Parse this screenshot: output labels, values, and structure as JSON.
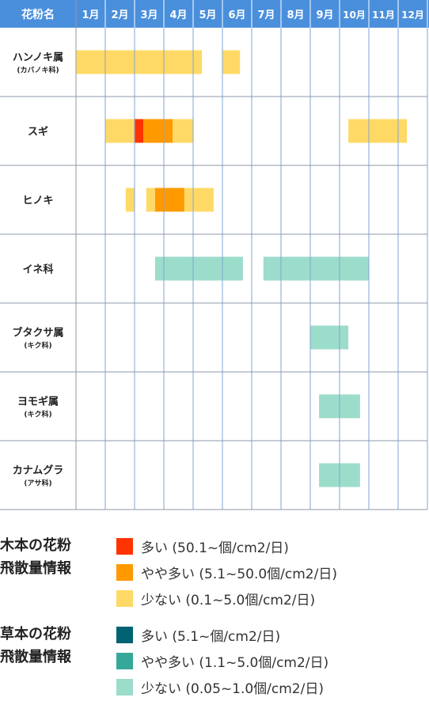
{
  "header": {
    "label": "花粉名",
    "months": [
      "1月",
      "2月",
      "3月",
      "4月",
      "5月",
      "6月",
      "7月",
      "8月",
      "9月",
      "10月",
      "11月",
      "12月"
    ]
  },
  "colors": {
    "header_bg": "#4A8FDC",
    "grid": "#8E9AAA",
    "wood_high": "#FF3300",
    "wood_mid": "#FF9900",
    "wood_low": "#FFD966",
    "grass_high": "#006272",
    "grass_mid": "#36A89A",
    "grass_low": "#9CDCCB"
  },
  "chart_data": {
    "type": "table",
    "title": "",
    "months": [
      "1月",
      "2月",
      "3月",
      "4月",
      "5月",
      "6月",
      "7月",
      "8月",
      "9月",
      "10月",
      "11月",
      "12月"
    ],
    "rows": [
      {
        "name": "ハンノキ属",
        "sub": "(カバノキ科)",
        "spans": [
          {
            "start": 1.0,
            "end": 5.3,
            "level": "wood_low"
          },
          {
            "start": 6.0,
            "end": 6.6,
            "level": "wood_low"
          }
        ]
      },
      {
        "name": "スギ",
        "sub": "",
        "spans": [
          {
            "start": 2.0,
            "end": 3.0,
            "level": "wood_low"
          },
          {
            "start": 3.0,
            "end": 3.3,
            "level": "wood_high"
          },
          {
            "start": 3.3,
            "end": 4.3,
            "level": "wood_mid"
          },
          {
            "start": 4.3,
            "end": 5.0,
            "level": "wood_low"
          },
          {
            "start": 10.3,
            "end": 12.3,
            "level": "wood_low"
          }
        ]
      },
      {
        "name": "ヒノキ",
        "sub": "",
        "spans": [
          {
            "start": 2.7,
            "end": 3.0,
            "level": "wood_low"
          },
          {
            "start": 3.4,
            "end": 3.7,
            "level": "wood_low"
          },
          {
            "start": 3.7,
            "end": 4.7,
            "level": "wood_mid"
          },
          {
            "start": 4.7,
            "end": 5.7,
            "level": "wood_low"
          }
        ]
      },
      {
        "name": "イネ科",
        "sub": "",
        "spans": [
          {
            "start": 3.7,
            "end": 6.7,
            "level": "grass_low"
          },
          {
            "start": 7.4,
            "end": 11.0,
            "level": "grass_low"
          }
        ]
      },
      {
        "name": "ブタクサ属",
        "sub": "(キク科)",
        "spans": [
          {
            "start": 9.0,
            "end": 10.3,
            "level": "grass_low"
          }
        ]
      },
      {
        "name": "ヨモギ属",
        "sub": "(キク科)",
        "spans": [
          {
            "start": 9.3,
            "end": 10.7,
            "level": "grass_low"
          }
        ]
      },
      {
        "name": "カナムグラ",
        "sub": "(アサ科)",
        "spans": [
          {
            "start": 9.3,
            "end": 10.7,
            "level": "grass_low"
          }
        ]
      }
    ]
  },
  "legend": {
    "wood": {
      "title": "木本の花粉\n飛散量情報",
      "items": [
        {
          "label": "多い (50.1~個/cm2/日)",
          "color": "#FF3300"
        },
        {
          "label": "やや多い (5.1~50.0個/cm2/日)",
          "color": "#FF9900"
        },
        {
          "label": "少ない (0.1~5.0個/cm2/日)",
          "color": "#FFD966"
        }
      ]
    },
    "grass": {
      "title": "草本の花粉\n飛散量情報",
      "items": [
        {
          "label": "多い (5.1~個/cm2/日)",
          "color": "#006272"
        },
        {
          "label": "やや多い (1.1~5.0個/cm2/日)",
          "color": "#36A89A"
        },
        {
          "label": "少ない (0.05~1.0個/cm2/日)",
          "color": "#9CDCCB"
        }
      ]
    }
  }
}
